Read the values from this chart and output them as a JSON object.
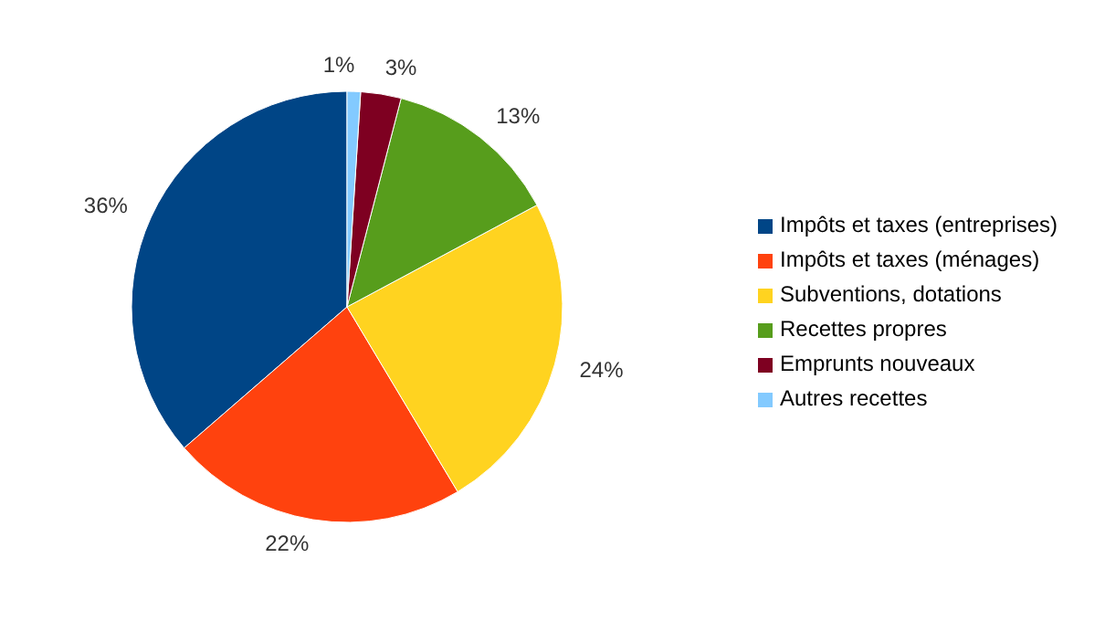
{
  "chart_data": {
    "type": "pie",
    "categories": [
      "Impôts et taxes (entreprises)",
      "Impôts et taxes (ménages)",
      "Subventions, dotations",
      "Recettes propres",
      "Emprunts nouveaux",
      "Autres recettes"
    ],
    "values": [
      36,
      22,
      24,
      13,
      3,
      1
    ],
    "value_labels": [
      "36%",
      "22%",
      "24%",
      "13%",
      "3%",
      "1%"
    ],
    "colors": [
      "#004586",
      "#ff420e",
      "#ffd320",
      "#579d1c",
      "#7e0021",
      "#83caff"
    ],
    "legend": "right"
  }
}
